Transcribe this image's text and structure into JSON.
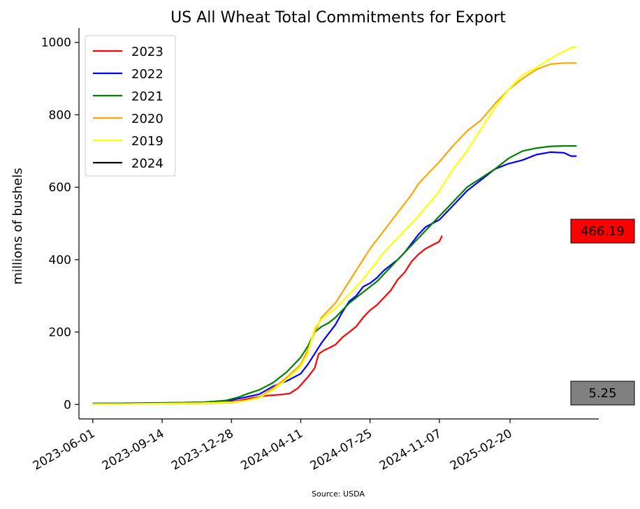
{
  "chart_data": {
    "type": "line",
    "title": "US All Wheat Total Commitments for Export",
    "ylabel": "millions of bushels",
    "xlabel": "",
    "source": "Source: USDA",
    "ylim": [
      -40,
      1040
    ],
    "yticks": [
      0,
      200,
      400,
      600,
      800,
      1000
    ],
    "xlim": [
      -10,
      365
    ],
    "xticks": [
      {
        "label": "2023-06-01",
        "day": 0
      },
      {
        "label": "2023-09-14",
        "day": 50
      },
      {
        "label": "2023-12-28",
        "day": 100
      },
      {
        "label": "2024-04-11",
        "day": 150
      },
      {
        "label": "2024-07-25",
        "day": 200
      },
      {
        "label": "2024-11-07",
        "day": 250
      },
      {
        "label": "2025-02-20",
        "day": 301
      }
    ],
    "grid": false,
    "legend_position": "upper-left",
    "series": [
      {
        "name": "2023",
        "color": "#ff0000",
        "x": [
          0,
          20,
          40,
          60,
          80,
          95,
          105,
          115,
          125,
          135,
          142,
          148,
          155,
          160,
          163,
          167,
          170,
          175,
          180,
          185,
          190,
          195,
          200,
          205,
          210,
          215,
          220,
          225,
          230,
          235,
          240,
          245,
          250,
          252
        ],
        "y": [
          2,
          2,
          3,
          4,
          5,
          7,
          10,
          18,
          24,
          27,
          30,
          45,
          75,
          100,
          140,
          150,
          155,
          165,
          185,
          200,
          215,
          240,
          260,
          275,
          295,
          315,
          345,
          365,
          395,
          415,
          430,
          440,
          450,
          466
        ]
      },
      {
        "name": "2022",
        "color": "#0000ff",
        "x": [
          0,
          20,
          40,
          60,
          80,
          90,
          100,
          110,
          120,
          130,
          140,
          150,
          155,
          160,
          165,
          170,
          175,
          180,
          185,
          190,
          195,
          200,
          205,
          210,
          215,
          220,
          225,
          230,
          235,
          240,
          245,
          250,
          260,
          270,
          280,
          290,
          300,
          310,
          320,
          330,
          340,
          345,
          349
        ],
        "y": [
          3,
          3,
          4,
          5,
          6,
          9,
          12,
          20,
          28,
          50,
          65,
          85,
          110,
          140,
          170,
          195,
          220,
          255,
          285,
          300,
          325,
          335,
          350,
          370,
          385,
          400,
          420,
          445,
          470,
          490,
          500,
          510,
          550,
          590,
          620,
          650,
          665,
          675,
          690,
          697,
          695,
          686,
          686
        ]
      },
      {
        "name": "2021",
        "color": "#008000",
        "x": [
          0,
          20,
          40,
          60,
          80,
          95,
          105,
          112,
          120,
          130,
          140,
          150,
          155,
          160,
          165,
          170,
          175,
          180,
          185,
          190,
          195,
          200,
          205,
          210,
          215,
          220,
          225,
          230,
          235,
          240,
          245,
          250,
          255,
          260,
          270,
          280,
          290,
          300,
          310,
          320,
          330,
          340,
          349
        ],
        "y": [
          2,
          2,
          3,
          5,
          6,
          10,
          20,
          30,
          40,
          60,
          90,
          130,
          160,
          200,
          215,
          225,
          240,
          260,
          280,
          295,
          310,
          325,
          340,
          360,
          380,
          400,
          420,
          440,
          460,
          480,
          500,
          520,
          540,
          560,
          600,
          625,
          650,
          680,
          700,
          708,
          713,
          714,
          714
        ]
      },
      {
        "name": "2020",
        "color": "#ffa500",
        "x": [
          0,
          20,
          40,
          60,
          80,
          100,
          110,
          120,
          130,
          140,
          150,
          155,
          160,
          165,
          170,
          175,
          180,
          185,
          190,
          195,
          200,
          205,
          210,
          215,
          220,
          225,
          230,
          235,
          240,
          245,
          250,
          260,
          270,
          280,
          290,
          300,
          310,
          320,
          330,
          340,
          349
        ],
        "y": [
          1,
          1,
          2,
          2,
          3,
          5,
          10,
          20,
          45,
          75,
          110,
          150,
          200,
          240,
          260,
          280,
          310,
          340,
          370,
          400,
          430,
          455,
          480,
          505,
          530,
          555,
          580,
          610,
          630,
          650,
          670,
          715,
          755,
          785,
          830,
          870,
          900,
          925,
          940,
          943,
          943
        ]
      },
      {
        "name": "2019",
        "color": "#ffff00",
        "x": [
          0,
          20,
          40,
          60,
          80,
          100,
          110,
          120,
          130,
          140,
          150,
          155,
          160,
          165,
          170,
          175,
          180,
          185,
          190,
          195,
          200,
          205,
          210,
          215,
          220,
          225,
          230,
          235,
          240,
          245,
          250,
          260,
          270,
          280,
          290,
          300,
          310,
          320,
          330,
          340,
          345,
          349
        ],
        "y": [
          1,
          1,
          2,
          3,
          4,
          6,
          10,
          18,
          40,
          70,
          105,
          140,
          210,
          235,
          250,
          265,
          285,
          305,
          325,
          345,
          370,
          395,
          420,
          440,
          460,
          480,
          500,
          520,
          545,
          565,
          590,
          650,
          700,
          760,
          820,
          870,
          910,
          930,
          955,
          975,
          985,
          988
        ]
      },
      {
        "name": "2024",
        "color": "#000000",
        "x": [],
        "y": []
      }
    ],
    "annotations": [
      {
        "label": "466.19",
        "color": "#ff0000"
      },
      {
        "label": "5.25",
        "color": "#808080"
      }
    ]
  }
}
